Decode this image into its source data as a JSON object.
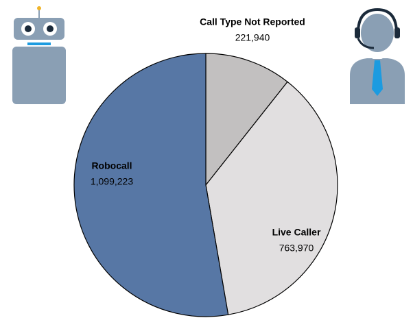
{
  "chart_data": {
    "type": "pie",
    "categories": [
      "Call Type Not Reported",
      "Live Caller",
      "Robocall"
    ],
    "values": [
      221940,
      763970,
      1099223
    ],
    "value_labels": [
      "221,940",
      "763,970",
      "1,099,223"
    ],
    "colors": [
      "#c2c0c0",
      "#e1dfe0",
      "#5777a5"
    ]
  }
}
